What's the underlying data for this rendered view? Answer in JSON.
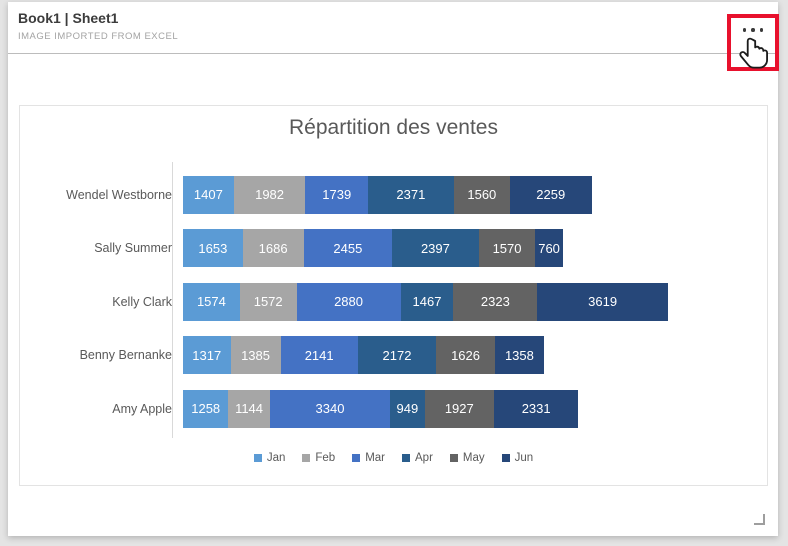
{
  "window": {
    "background": "#e4e4e4",
    "panel_background": "#ffffff"
  },
  "header": {
    "title": "Book1 | Sheet1",
    "subtitle": "IMAGE IMPORTED FROM EXCEL"
  },
  "menu_button": {
    "icon": "ellipsis"
  },
  "annotations": {
    "highlight_box_color": "#e8112d",
    "cursor_icon": "hand-pointer"
  },
  "chart_data": {
    "type": "bar",
    "orientation": "horizontal",
    "stacked": true,
    "title": "Répartition des ventes",
    "xlabel": "",
    "ylabel": "",
    "grid": false,
    "data_labels": "inside-white",
    "legend_position": "bottom",
    "categories": [
      "Wendel Westborne",
      "Sally Summer",
      "Kelly Clark",
      "Benny Bernanke",
      "Amy Apple"
    ],
    "series": [
      {
        "name": "Jan",
        "color": "#5B9BD5",
        "values": [
          1407,
          1653,
          1574,
          1317,
          1258
        ]
      },
      {
        "name": "Feb",
        "color": "#A6A6A6",
        "values": [
          1982,
          1686,
          1572,
          1385,
          1144
        ]
      },
      {
        "name": "Mar",
        "color": "#4472C4",
        "values": [
          1739,
          2455,
          2880,
          2141,
          3340
        ]
      },
      {
        "name": "Apr",
        "color": "#2A5D8C",
        "values": [
          2371,
          2397,
          1467,
          2172,
          949
        ]
      },
      {
        "name": "May",
        "color": "#636363",
        "values": [
          1560,
          1570,
          2323,
          1626,
          1927
        ]
      },
      {
        "name": "Jun",
        "color": "#264779",
        "values": [
          2259,
          760,
          3619,
          1358,
          2331
        ]
      }
    ],
    "category_totals": [
      11318,
      10521,
      13435,
      9999,
      10949
    ]
  }
}
